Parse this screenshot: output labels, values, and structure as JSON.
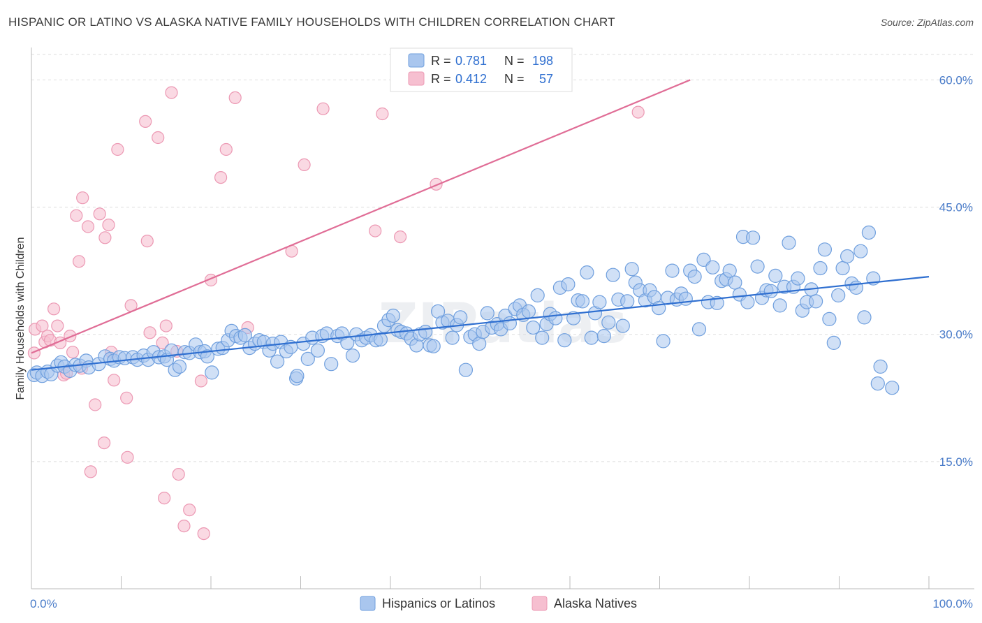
{
  "title": "HISPANIC OR LATINO VS ALASKA NATIVE FAMILY HOUSEHOLDS WITH CHILDREN CORRELATION CHART",
  "source": "Source: ZipAtlas.com",
  "watermark": "ZIPatlas",
  "colors": {
    "blue_fill": "#a9c6ee",
    "blue_stroke": "#6f9fde",
    "blue_line": "#2f6fd0",
    "pink_fill": "#f6bfd0",
    "pink_stroke": "#ec98b3",
    "pink_line": "#e06d96",
    "tick_text": "#4a7cc9",
    "grid": "#dddddd"
  },
  "legend": {
    "r_label": "R =",
    "n_label": "N =",
    "rows": [
      {
        "r": "0.781",
        "n": "198"
      },
      {
        "r": "0.412",
        "n": "57"
      }
    ]
  },
  "chart_data": {
    "type": "scatter",
    "xlabel": "",
    "ylabel": "Family Households with Children",
    "xlim": [
      0,
      100
    ],
    "ylim": [
      0,
      63
    ],
    "x_tick_labels": [
      "0.0%",
      "100.0%"
    ],
    "y_ticks": [
      15,
      30,
      45,
      60
    ],
    "y_tick_labels": [
      "15.0%",
      "30.0%",
      "45.0%",
      "60.0%"
    ],
    "grid": true,
    "legend_position": "top-center",
    "series": [
      {
        "name": "Hispanics or Latinos",
        "trend": {
          "x": [
            0,
            100
          ],
          "y": [
            25.8,
            36.8
          ]
        },
        "points": [
          [
            0.3,
            25.2
          ],
          [
            0.6,
            25.5
          ],
          [
            1.2,
            25.1
          ],
          [
            1.8,
            25.6
          ],
          [
            2.2,
            25.3
          ],
          [
            2.9,
            26.3
          ],
          [
            3.3,
            26.7
          ],
          [
            3.7,
            26.2
          ],
          [
            4.3,
            25.7
          ],
          [
            4.9,
            26.4
          ],
          [
            5.4,
            26.3
          ],
          [
            6.1,
            26.9
          ],
          [
            6.4,
            26.1
          ],
          [
            7.5,
            26.5
          ],
          [
            8.2,
            27.4
          ],
          [
            8.8,
            27.1
          ],
          [
            9.2,
            26.9
          ],
          [
            9.8,
            27.3
          ],
          [
            10.4,
            27.2
          ],
          [
            11.3,
            27.3
          ],
          [
            11.8,
            27.0
          ],
          [
            12.5,
            27.5
          ],
          [
            13.0,
            27.0
          ],
          [
            13.6,
            27.9
          ],
          [
            14.2,
            27.3
          ],
          [
            14.8,
            27.4
          ],
          [
            15.1,
            27.0
          ],
          [
            15.6,
            28.1
          ],
          [
            16.0,
            25.8
          ],
          [
            16.5,
            26.2
          ],
          [
            17.1,
            27.9
          ],
          [
            17.6,
            27.8
          ],
          [
            18.3,
            28.8
          ],
          [
            18.8,
            27.9
          ],
          [
            19.3,
            28.0
          ],
          [
            19.6,
            27.4
          ],
          [
            20.1,
            25.5
          ],
          [
            20.8,
            28.3
          ],
          [
            21.3,
            28.4
          ],
          [
            21.9,
            29.3
          ],
          [
            22.3,
            30.4
          ],
          [
            22.8,
            29.8
          ],
          [
            23.3,
            29.6
          ],
          [
            23.8,
            29.9
          ],
          [
            24.3,
            28.4
          ],
          [
            24.9,
            28.9
          ],
          [
            25.4,
            29.3
          ],
          [
            25.9,
            29.1
          ],
          [
            26.5,
            28.1
          ],
          [
            26.9,
            28.9
          ],
          [
            27.4,
            26.8
          ],
          [
            27.8,
            29.1
          ],
          [
            28.4,
            28.0
          ],
          [
            28.9,
            28.5
          ],
          [
            29.5,
            24.8
          ],
          [
            29.6,
            25.1
          ],
          [
            30.3,
            28.9
          ],
          [
            30.8,
            27.1
          ],
          [
            31.3,
            29.6
          ],
          [
            31.9,
            28.1
          ],
          [
            32.4,
            29.8
          ],
          [
            32.9,
            30.1
          ],
          [
            33.4,
            26.5
          ],
          [
            34.1,
            29.8
          ],
          [
            34.6,
            30.1
          ],
          [
            35.2,
            29.0
          ],
          [
            35.8,
            27.5
          ],
          [
            36.2,
            30.0
          ],
          [
            36.8,
            29.3
          ],
          [
            37.3,
            29.6
          ],
          [
            37.8,
            29.9
          ],
          [
            38.4,
            29.3
          ],
          [
            38.9,
            29.4
          ],
          [
            39.3,
            31.0
          ],
          [
            39.8,
            31.7
          ],
          [
            40.3,
            32.2
          ],
          [
            40.8,
            30.5
          ],
          [
            41.2,
            30.3
          ],
          [
            41.8,
            30.1
          ],
          [
            42.3,
            29.5
          ],
          [
            42.9,
            28.7
          ],
          [
            43.3,
            30.0
          ],
          [
            43.9,
            30.3
          ],
          [
            44.4,
            28.7
          ],
          [
            44.8,
            28.6
          ],
          [
            45.3,
            32.7
          ],
          [
            45.8,
            31.4
          ],
          [
            46.4,
            31.6
          ],
          [
            46.9,
            29.6
          ],
          [
            47.4,
            31.1
          ],
          [
            47.8,
            32.0
          ],
          [
            48.4,
            25.8
          ],
          [
            48.9,
            29.7
          ],
          [
            49.4,
            30.0
          ],
          [
            49.9,
            28.9
          ],
          [
            50.3,
            30.3
          ],
          [
            50.8,
            32.5
          ],
          [
            51.3,
            30.8
          ],
          [
            51.9,
            31.2
          ],
          [
            52.3,
            30.6
          ],
          [
            52.8,
            32.2
          ],
          [
            53.3,
            31.3
          ],
          [
            53.9,
            33.0
          ],
          [
            54.4,
            33.4
          ],
          [
            54.8,
            32.3
          ],
          [
            55.4,
            32.7
          ],
          [
            55.9,
            30.8
          ],
          [
            56.4,
            34.6
          ],
          [
            56.9,
            29.6
          ],
          [
            57.4,
            31.2
          ],
          [
            57.8,
            32.4
          ],
          [
            58.4,
            31.9
          ],
          [
            58.9,
            35.5
          ],
          [
            59.4,
            29.3
          ],
          [
            59.8,
            35.9
          ],
          [
            60.4,
            31.9
          ],
          [
            60.9,
            34.0
          ],
          [
            61.4,
            33.9
          ],
          [
            61.9,
            37.3
          ],
          [
            62.4,
            29.6
          ],
          [
            62.8,
            32.5
          ],
          [
            63.3,
            33.8
          ],
          [
            63.8,
            29.8
          ],
          [
            64.3,
            31.4
          ],
          [
            64.8,
            37.0
          ],
          [
            65.4,
            34.1
          ],
          [
            65.9,
            31.0
          ],
          [
            66.4,
            33.9
          ],
          [
            66.9,
            37.7
          ],
          [
            67.3,
            36.1
          ],
          [
            67.8,
            35.2
          ],
          [
            68.4,
            34.0
          ],
          [
            68.9,
            35.2
          ],
          [
            69.4,
            34.4
          ],
          [
            69.9,
            33.1
          ],
          [
            70.4,
            29.2
          ],
          [
            70.9,
            34.3
          ],
          [
            71.4,
            37.5
          ],
          [
            71.9,
            34.1
          ],
          [
            72.4,
            34.8
          ],
          [
            72.9,
            34.2
          ],
          [
            73.4,
            37.5
          ],
          [
            73.9,
            36.8
          ],
          [
            74.4,
            30.6
          ],
          [
            74.9,
            38.8
          ],
          [
            75.4,
            33.8
          ],
          [
            75.9,
            37.9
          ],
          [
            76.4,
            33.7
          ],
          [
            76.9,
            36.3
          ],
          [
            77.4,
            36.5
          ],
          [
            77.8,
            37.5
          ],
          [
            78.4,
            36.1
          ],
          [
            78.9,
            34.7
          ],
          [
            79.3,
            41.5
          ],
          [
            79.8,
            33.8
          ],
          [
            80.4,
            41.4
          ],
          [
            80.9,
            38.0
          ],
          [
            81.4,
            34.3
          ],
          [
            81.9,
            35.2
          ],
          [
            82.4,
            35.1
          ],
          [
            82.9,
            36.9
          ],
          [
            83.4,
            33.4
          ],
          [
            83.9,
            35.6
          ],
          [
            84.4,
            40.8
          ],
          [
            84.9,
            35.6
          ],
          [
            85.4,
            36.6
          ],
          [
            85.9,
            32.8
          ],
          [
            86.4,
            33.8
          ],
          [
            86.9,
            35.3
          ],
          [
            87.4,
            33.9
          ],
          [
            87.9,
            37.8
          ],
          [
            88.4,
            40.0
          ],
          [
            88.9,
            31.8
          ],
          [
            89.4,
            29.0
          ],
          [
            89.9,
            34.6
          ],
          [
            90.4,
            37.8
          ],
          [
            90.9,
            39.2
          ],
          [
            91.4,
            36.0
          ],
          [
            91.9,
            35.5
          ],
          [
            92.4,
            39.8
          ],
          [
            92.8,
            32.0
          ],
          [
            93.3,
            42.0
          ],
          [
            93.8,
            36.6
          ],
          [
            94.3,
            24.2
          ],
          [
            94.6,
            26.2
          ],
          [
            95.9,
            23.7
          ]
        ]
      },
      {
        "name": "Alaska Natives",
        "trend": {
          "x": [
            0,
            73.4
          ],
          "y": [
            27.8,
            60.0
          ]
        },
        "points": [
          [
            0.3,
            27.8
          ],
          [
            0.4,
            30.6
          ],
          [
            1.2,
            31.0
          ],
          [
            1.5,
            29.1
          ],
          [
            1.8,
            29.8
          ],
          [
            2.1,
            29.3
          ],
          [
            2.5,
            33.0
          ],
          [
            2.9,
            31.0
          ],
          [
            3.2,
            29.0
          ],
          [
            3.6,
            25.2
          ],
          [
            3.9,
            25.4
          ],
          [
            4.3,
            29.8
          ],
          [
            4.6,
            27.9
          ],
          [
            5.0,
            44.0
          ],
          [
            5.3,
            38.6
          ],
          [
            5.6,
            26.0
          ],
          [
            5.7,
            46.1
          ],
          [
            6.3,
            42.7
          ],
          [
            6.6,
            13.8
          ],
          [
            7.1,
            21.7
          ],
          [
            7.6,
            44.2
          ],
          [
            8.1,
            17.2
          ],
          [
            8.2,
            41.4
          ],
          [
            8.6,
            42.9
          ],
          [
            8.9,
            27.9
          ],
          [
            9.2,
            24.6
          ],
          [
            9.6,
            51.8
          ],
          [
            10.6,
            22.5
          ],
          [
            10.7,
            15.5
          ],
          [
            11.1,
            33.4
          ],
          [
            12.7,
            55.1
          ],
          [
            12.9,
            41.0
          ],
          [
            13.2,
            30.2
          ],
          [
            14.1,
            53.2
          ],
          [
            14.6,
            29.0
          ],
          [
            14.8,
            10.7
          ],
          [
            15.0,
            31.0
          ],
          [
            15.6,
            58.5
          ],
          [
            16.2,
            28.0
          ],
          [
            16.4,
            13.5
          ],
          [
            17.0,
            7.4
          ],
          [
            17.6,
            9.3
          ],
          [
            18.9,
            24.5
          ],
          [
            19.2,
            6.5
          ],
          [
            20.0,
            36.4
          ],
          [
            21.1,
            48.5
          ],
          [
            21.7,
            51.8
          ],
          [
            22.7,
            57.9
          ],
          [
            24.1,
            30.8
          ],
          [
            29.0,
            39.8
          ],
          [
            30.4,
            50.0
          ],
          [
            32.5,
            56.6
          ],
          [
            38.3,
            42.2
          ],
          [
            39.1,
            56.0
          ],
          [
            41.1,
            41.5
          ],
          [
            45.1,
            47.7
          ],
          [
            67.6,
            56.2
          ]
        ]
      }
    ]
  }
}
